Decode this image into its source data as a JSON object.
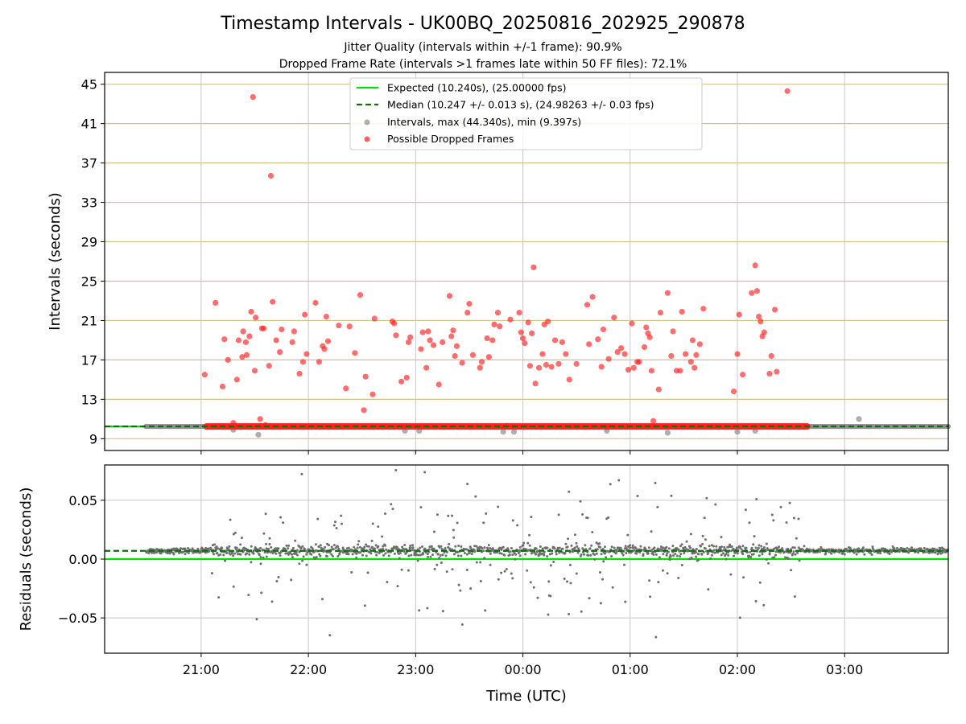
{
  "chart_data": {
    "type": "scatter",
    "title": "Timestamp Intervals - UK00BQ_20250816_202925_290878",
    "subtitles": [
      "Jitter Quality (intervals within +/-1 frame): 90.9%",
      "Dropped Frame Rate (intervals >1 frames late within 50 FF files): 72.1%"
    ],
    "xlabel": "Time (UTC)",
    "x_ticks": [
      "21:00",
      "22:00",
      "23:00",
      "00:00",
      "01:00",
      "02:00",
      "03:00"
    ],
    "x_range": [
      "2025-08-16T20:06:00Z",
      "2025-08-17T03:58:00Z"
    ],
    "top_panel": {
      "ylabel": "Intervals (seconds)",
      "ylim": [
        7.8,
        46.2
      ],
      "y_ticks": [
        9,
        13,
        17,
        21,
        25,
        29,
        33,
        37,
        41,
        45
      ],
      "grid": "horizontal-gold-and-vertical-gray",
      "legend_position": "top-center",
      "legend": [
        "Expected (10.240s), (25.00000 fps)",
        "Median (10.247 +/- 0.013 s), (24.98263 +/- 0.03 fps)",
        "Intervals, max (44.340s), min (9.397s)",
        "Possible Dropped Frames"
      ],
      "expected_value": 10.24,
      "median_value": 10.247,
      "interval_band": {
        "start": "2025-08-16T20:29:00Z",
        "end": "2025-08-17T03:58:00Z",
        "value": 10.24
      },
      "dropped_band": {
        "start": "2025-08-16T21:03:00Z",
        "end": "2025-08-17T02:39:00Z",
        "value": 10.24
      },
      "gray_outliers": [
        {
          "x": "2025-08-16T21:32:00Z",
          "y": 9.4
        },
        {
          "x": "2025-08-16T21:18:00Z",
          "y": 9.9
        },
        {
          "x": "2025-08-16T22:54:00Z",
          "y": 9.8
        },
        {
          "x": "2025-08-16T23:02:00Z",
          "y": 9.8
        },
        {
          "x": "2025-08-16T23:55:00Z",
          "y": 9.7
        },
        {
          "x": "2025-08-16T23:49:00Z",
          "y": 9.7
        },
        {
          "x": "2025-08-17T00:47:00Z",
          "y": 9.8
        },
        {
          "x": "2025-08-17T01:21:00Z",
          "y": 9.6
        },
        {
          "x": "2025-08-17T02:00:00Z",
          "y": 9.7
        },
        {
          "x": "2025-08-17T02:10:00Z",
          "y": 9.8
        },
        {
          "x": "2025-08-17T03:08:00Z",
          "y": 11.0
        }
      ],
      "dropped_frames": [
        {
          "x": "2025-08-16T21:02:00Z",
          "y": 15.5
        },
        {
          "x": "2025-08-16T21:08:00Z",
          "y": 22.8
        },
        {
          "x": "2025-08-16T21:12:00Z",
          "y": 14.3
        },
        {
          "x": "2025-08-16T21:13:00Z",
          "y": 19.1
        },
        {
          "x": "2025-08-16T21:15:00Z",
          "y": 17.0
        },
        {
          "x": "2025-08-16T21:18:00Z",
          "y": 10.6
        },
        {
          "x": "2025-08-16T21:20:00Z",
          "y": 15.0
        },
        {
          "x": "2025-08-16T21:21:00Z",
          "y": 19.0
        },
        {
          "x": "2025-08-16T21:23:00Z",
          "y": 17.3
        },
        {
          "x": "2025-08-16T21:23:30Z",
          "y": 19.9
        },
        {
          "x": "2025-08-16T21:25:00Z",
          "y": 18.8
        },
        {
          "x": "2025-08-16T21:25:30Z",
          "y": 17.5
        },
        {
          "x": "2025-08-16T21:27:00Z",
          "y": 19.4
        },
        {
          "x": "2025-08-16T21:28:00Z",
          "y": 21.9
        },
        {
          "x": "2025-08-16T21:29:00Z",
          "y": 43.7
        },
        {
          "x": "2025-08-16T21:30:00Z",
          "y": 15.9
        },
        {
          "x": "2025-08-16T21:30:30Z",
          "y": 21.3
        },
        {
          "x": "2025-08-16T21:33:00Z",
          "y": 11.0
        },
        {
          "x": "2025-08-16T21:34:00Z",
          "y": 20.2
        },
        {
          "x": "2025-08-16T21:35:00Z",
          "y": 20.2
        },
        {
          "x": "2025-08-16T21:36:00Z",
          "y": 10.4
        },
        {
          "x": "2025-08-16T21:38:00Z",
          "y": 16.4
        },
        {
          "x": "2025-08-16T21:39:00Z",
          "y": 35.7
        },
        {
          "x": "2025-08-16T21:40:00Z",
          "y": 22.9
        },
        {
          "x": "2025-08-16T21:42:00Z",
          "y": 19.0
        },
        {
          "x": "2025-08-16T21:44:00Z",
          "y": 17.8
        },
        {
          "x": "2025-08-16T21:45:00Z",
          "y": 20.1
        },
        {
          "x": "2025-08-16T21:51:00Z",
          "y": 18.8
        },
        {
          "x": "2025-08-16T21:52:00Z",
          "y": 19.9
        },
        {
          "x": "2025-08-16T21:55:00Z",
          "y": 15.6
        },
        {
          "x": "2025-08-16T21:57:00Z",
          "y": 16.8
        },
        {
          "x": "2025-08-16T21:58:00Z",
          "y": 21.6
        },
        {
          "x": "2025-08-16T21:59:00Z",
          "y": 17.6
        },
        {
          "x": "2025-08-16T22:04:00Z",
          "y": 22.8
        },
        {
          "x": "2025-08-16T22:06:00Z",
          "y": 16.8
        },
        {
          "x": "2025-08-16T22:08:00Z",
          "y": 18.4
        },
        {
          "x": "2025-08-16T22:09:00Z",
          "y": 18.1
        },
        {
          "x": "2025-08-16T22:10:00Z",
          "y": 21.4
        },
        {
          "x": "2025-08-16T22:11:00Z",
          "y": 18.9
        },
        {
          "x": "2025-08-16T22:17:00Z",
          "y": 20.5
        },
        {
          "x": "2025-08-16T22:21:00Z",
          "y": 14.1
        },
        {
          "x": "2025-08-16T22:23:00Z",
          "y": 20.4
        },
        {
          "x": "2025-08-16T22:26:00Z",
          "y": 17.7
        },
        {
          "x": "2025-08-16T22:29:00Z",
          "y": 23.6
        },
        {
          "x": "2025-08-16T22:31:00Z",
          "y": 11.9
        },
        {
          "x": "2025-08-16T22:32:00Z",
          "y": 15.3
        },
        {
          "x": "2025-08-16T22:36:00Z",
          "y": 13.5
        },
        {
          "x": "2025-08-16T22:37:00Z",
          "y": 21.2
        },
        {
          "x": "2025-08-16T22:47:00Z",
          "y": 20.9
        },
        {
          "x": "2025-08-16T22:48:00Z",
          "y": 20.7
        },
        {
          "x": "2025-08-16T22:49:00Z",
          "y": 19.5
        },
        {
          "x": "2025-08-16T22:52:00Z",
          "y": 14.8
        },
        {
          "x": "2025-08-16T22:55:00Z",
          "y": 15.2
        },
        {
          "x": "2025-08-16T22:56:00Z",
          "y": 18.8
        },
        {
          "x": "2025-08-16T22:57:00Z",
          "y": 19.3
        },
        {
          "x": "2025-08-16T23:03:00Z",
          "y": 18.1
        },
        {
          "x": "2025-08-16T23:04:00Z",
          "y": 19.8
        },
        {
          "x": "2025-08-16T23:06:00Z",
          "y": 16.2
        },
        {
          "x": "2025-08-16T23:07:00Z",
          "y": 19.9
        },
        {
          "x": "2025-08-16T23:08:00Z",
          "y": 19.0
        },
        {
          "x": "2025-08-16T23:10:00Z",
          "y": 18.5
        },
        {
          "x": "2025-08-16T23:13:00Z",
          "y": 14.5
        },
        {
          "x": "2025-08-16T23:15:00Z",
          "y": 18.8
        },
        {
          "x": "2025-08-16T23:19:00Z",
          "y": 23.5
        },
        {
          "x": "2025-08-16T23:20:00Z",
          "y": 19.4
        },
        {
          "x": "2025-08-16T23:21:00Z",
          "y": 20.0
        },
        {
          "x": "2025-08-16T23:22:00Z",
          "y": 17.4
        },
        {
          "x": "2025-08-16T23:23:00Z",
          "y": 18.4
        },
        {
          "x": "2025-08-16T23:26:00Z",
          "y": 16.7
        },
        {
          "x": "2025-08-16T23:29:00Z",
          "y": 21.8
        },
        {
          "x": "2025-08-16T23:30:00Z",
          "y": 22.7
        },
        {
          "x": "2025-08-16T23:32:00Z",
          "y": 17.5
        },
        {
          "x": "2025-08-16T23:36:00Z",
          "y": 16.2
        },
        {
          "x": "2025-08-16T23:37:00Z",
          "y": 16.8
        },
        {
          "x": "2025-08-16T23:40:00Z",
          "y": 19.2
        },
        {
          "x": "2025-08-16T23:41:00Z",
          "y": 17.3
        },
        {
          "x": "2025-08-16T23:43:00Z",
          "y": 19.0
        },
        {
          "x": "2025-08-16T23:44:00Z",
          "y": 20.6
        },
        {
          "x": "2025-08-16T23:46:00Z",
          "y": 21.8
        },
        {
          "x": "2025-08-16T23:47:00Z",
          "y": 20.4
        },
        {
          "x": "2025-08-16T23:51:00Z",
          "y": 10.3
        },
        {
          "x": "2025-08-16T23:53:00Z",
          "y": 21.1
        },
        {
          "x": "2025-08-16T23:58:00Z",
          "y": 21.8
        },
        {
          "x": "2025-08-16T23:59:00Z",
          "y": 19.8
        },
        {
          "x": "2025-08-17T00:00:00Z",
          "y": 19.2
        },
        {
          "x": "2025-08-17T00:01:00Z",
          "y": 18.7
        },
        {
          "x": "2025-08-17T00:03:00Z",
          "y": 20.8
        },
        {
          "x": "2025-08-17T00:04:00Z",
          "y": 16.4
        },
        {
          "x": "2025-08-17T00:05:00Z",
          "y": 19.7
        },
        {
          "x": "2025-08-17T00:06:00Z",
          "y": 26.4
        },
        {
          "x": "2025-08-17T00:07:00Z",
          "y": 14.6
        },
        {
          "x": "2025-08-17T00:09:00Z",
          "y": 16.2
        },
        {
          "x": "2025-08-17T00:11:00Z",
          "y": 17.6
        },
        {
          "x": "2025-08-17T00:12:00Z",
          "y": 20.6
        },
        {
          "x": "2025-08-17T00:13:00Z",
          "y": 16.5
        },
        {
          "x": "2025-08-17T00:14:00Z",
          "y": 20.9
        },
        {
          "x": "2025-08-17T00:16:00Z",
          "y": 16.3
        },
        {
          "x": "2025-08-17T00:18:00Z",
          "y": 19.0
        },
        {
          "x": "2025-08-17T00:20:00Z",
          "y": 16.6
        },
        {
          "x": "2025-08-17T00:22:00Z",
          "y": 18.8
        },
        {
          "x": "2025-08-17T00:24:00Z",
          "y": 17.6
        },
        {
          "x": "2025-08-17T00:26:00Z",
          "y": 15.0
        },
        {
          "x": "2025-08-17T00:30:00Z",
          "y": 16.6
        },
        {
          "x": "2025-08-17T00:36:00Z",
          "y": 22.6
        },
        {
          "x": "2025-08-17T00:37:00Z",
          "y": 18.6
        },
        {
          "x": "2025-08-17T00:39:00Z",
          "y": 23.4
        },
        {
          "x": "2025-08-17T00:42:00Z",
          "y": 19.1
        },
        {
          "x": "2025-08-17T00:44:00Z",
          "y": 16.3
        },
        {
          "x": "2025-08-17T00:45:00Z",
          "y": 20.1
        },
        {
          "x": "2025-08-17T00:48:00Z",
          "y": 17.1
        },
        {
          "x": "2025-08-17T00:51:00Z",
          "y": 21.3
        },
        {
          "x": "2025-08-17T00:53:00Z",
          "y": 17.8
        },
        {
          "x": "2025-08-17T00:55:00Z",
          "y": 18.2
        },
        {
          "x": "2025-08-17T00:57:00Z",
          "y": 17.6
        },
        {
          "x": "2025-08-17T00:59:00Z",
          "y": 16.0
        },
        {
          "x": "2025-08-17T01:01:00Z",
          "y": 20.7
        },
        {
          "x": "2025-08-17T01:02:00Z",
          "y": 16.2
        },
        {
          "x": "2025-08-17T01:04:00Z",
          "y": 16.8
        },
        {
          "x": "2025-08-17T01:05:00Z",
          "y": 16.8
        },
        {
          "x": "2025-08-17T01:08:00Z",
          "y": 18.3
        },
        {
          "x": "2025-08-17T01:09:00Z",
          "y": 20.3
        },
        {
          "x": "2025-08-17T01:10:00Z",
          "y": 19.7
        },
        {
          "x": "2025-08-17T01:11:00Z",
          "y": 19.3
        },
        {
          "x": "2025-08-17T01:12:00Z",
          "y": 15.9
        },
        {
          "x": "2025-08-17T01:13:00Z",
          "y": 10.8
        },
        {
          "x": "2025-08-17T01:16:00Z",
          "y": 14.0
        },
        {
          "x": "2025-08-17T01:17:00Z",
          "y": 21.8
        },
        {
          "x": "2025-08-17T01:21:00Z",
          "y": 23.8
        },
        {
          "x": "2025-08-17T01:23:00Z",
          "y": 17.4
        },
        {
          "x": "2025-08-17T01:24:00Z",
          "y": 19.9
        },
        {
          "x": "2025-08-17T01:26:00Z",
          "y": 15.9
        },
        {
          "x": "2025-08-17T01:28:00Z",
          "y": 15.9
        },
        {
          "x": "2025-08-17T01:29:00Z",
          "y": 21.9
        },
        {
          "x": "2025-08-17T01:31:00Z",
          "y": 17.6
        },
        {
          "x": "2025-08-17T01:34:00Z",
          "y": 16.8
        },
        {
          "x": "2025-08-17T01:35:00Z",
          "y": 19.0
        },
        {
          "x": "2025-08-17T01:36:00Z",
          "y": 16.2
        },
        {
          "x": "2025-08-17T01:37:00Z",
          "y": 17.5
        },
        {
          "x": "2025-08-17T01:39:00Z",
          "y": 18.6
        },
        {
          "x": "2025-08-17T01:41:00Z",
          "y": 22.2
        },
        {
          "x": "2025-08-17T01:58:00Z",
          "y": 13.8
        },
        {
          "x": "2025-08-17T02:00:00Z",
          "y": 17.6
        },
        {
          "x": "2025-08-17T02:01:00Z",
          "y": 21.6
        },
        {
          "x": "2025-08-17T02:03:00Z",
          "y": 15.5
        },
        {
          "x": "2025-08-17T02:08:00Z",
          "y": 23.8
        },
        {
          "x": "2025-08-17T02:10:00Z",
          "y": 26.6
        },
        {
          "x": "2025-08-17T02:11:00Z",
          "y": 24.0
        },
        {
          "x": "2025-08-17T02:12:00Z",
          "y": 21.4
        },
        {
          "x": "2025-08-17T02:13:00Z",
          "y": 20.9
        },
        {
          "x": "2025-08-17T02:14:00Z",
          "y": 19.4
        },
        {
          "x": "2025-08-17T02:15:00Z",
          "y": 19.8
        },
        {
          "x": "2025-08-17T02:18:00Z",
          "y": 15.6
        },
        {
          "x": "2025-08-17T02:19:00Z",
          "y": 17.4
        },
        {
          "x": "2025-08-17T02:21:00Z",
          "y": 22.1
        },
        {
          "x": "2025-08-17T02:22:00Z",
          "y": 15.8
        },
        {
          "x": "2025-08-17T02:28:00Z",
          "y": 44.3
        }
      ]
    },
    "bottom_panel": {
      "ylabel": "Residuals (seconds)",
      "ylim": [
        -0.08,
        0.08
      ],
      "y_ticks": [
        -0.05,
        0.0,
        0.05
      ],
      "y_tick_labels": [
        "−0.05",
        "0.00",
        "0.05"
      ],
      "grid": true,
      "zero_line": 0.0,
      "median_residual": 0.007
    },
    "colors": {
      "expected": "#00e000",
      "median": "#0a6e0a",
      "intervals": "#8c8c8c",
      "dropped": "#ff2020",
      "residuals": "#6e6e6e",
      "interval_grid": "#d4c08a",
      "time_grid": "#c8c8c8"
    }
  }
}
